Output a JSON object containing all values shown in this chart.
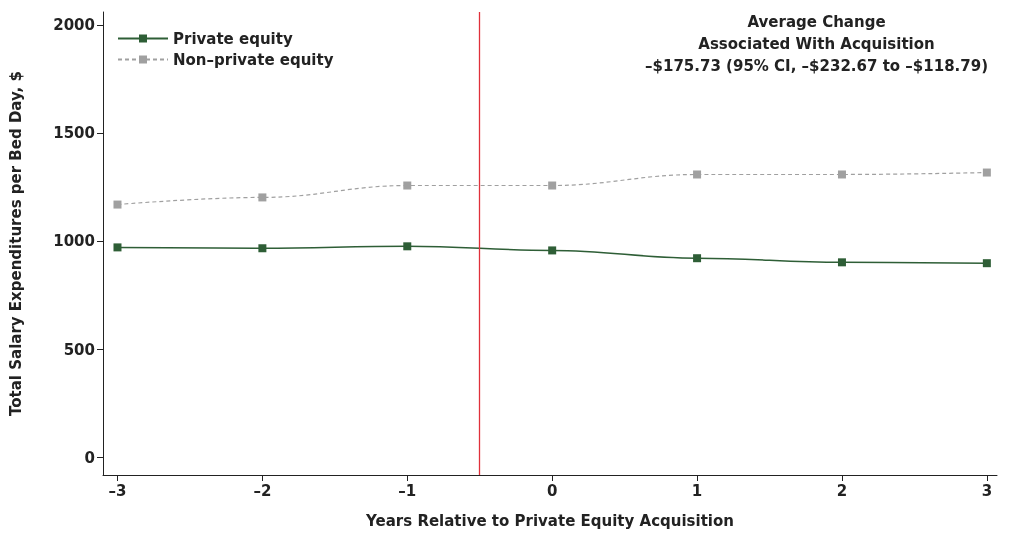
{
  "chart_data": {
    "type": "line",
    "xlabel": "Years Relative to Private Equity Acquisition",
    "ylabel": "Total Salary Expenditures per Bed Day, $",
    "x": [
      -3,
      -2,
      -1,
      0,
      1,
      2,
      3
    ],
    "series": [
      {
        "name": "Private equity",
        "color": "#2e5e36",
        "line_style": "solid",
        "values": [
          972,
          968,
          977,
          958,
          922,
          903,
          899
        ]
      },
      {
        "name": "Non–private equity",
        "color": "#a0a0a0",
        "line_style": "dashed",
        "values": [
          1170,
          1203,
          1258,
          1258,
          1309,
          1309,
          1318
        ]
      }
    ],
    "xlim": [
      -3.1,
      3.07
    ],
    "xticks": [
      {
        "value": -3,
        "label": "–3"
      },
      {
        "value": -2,
        "label": "–2"
      },
      {
        "value": -1,
        "label": "–1"
      },
      0,
      1,
      2,
      3
    ],
    "ylim": [
      -80,
      2060
    ],
    "yticks": [
      0,
      500,
      1000,
      1500,
      2000
    ],
    "ref_lines": [
      {
        "axis": "x",
        "value": -0.5,
        "color": "#e0303a"
      }
    ],
    "annotations": [
      "Average Change",
      "Associated With Acquisition",
      "–$175.73 (95% CI, –$232.67 to –$118.79)"
    ],
    "marker": "square",
    "legend": "top left",
    "grid": false
  }
}
